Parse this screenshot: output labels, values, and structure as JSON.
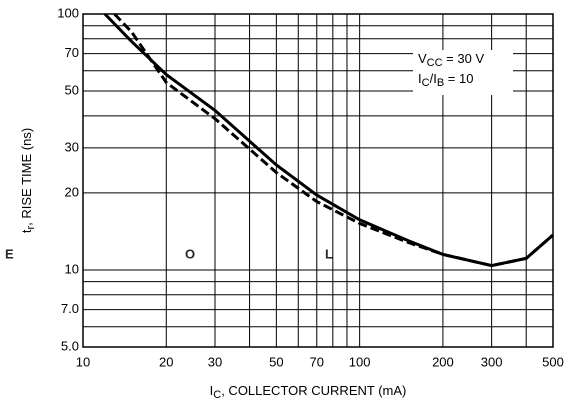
{
  "chart_data": {
    "type": "line",
    "watermark": [
      "E",
      "O",
      "L"
    ],
    "x_label": [
      "I",
      "C",
      ", COLLECTOR CURRENT (mA)"
    ],
    "y_label": [
      "t",
      "r",
      ", RISE TIME (ns)"
    ],
    "annotations": [
      [
        "V",
        "CC",
        " = 30 V"
      ],
      [
        "I",
        "C",
        "/I",
        "B",
        " = 10"
      ]
    ],
    "log_x": true,
    "log_y": true,
    "xlim": [
      10,
      500
    ],
    "ylim": [
      5,
      100
    ],
    "xticks": [
      10,
      20,
      30,
      50,
      70,
      100,
      200,
      300,
      500
    ],
    "yticks": [
      {
        "value": 5,
        "label": "5.0"
      },
      {
        "value": 7,
        "label": "7.0"
      },
      10,
      20,
      30,
      50,
      70,
      100
    ],
    "xgrid": [
      10,
      20,
      30,
      40,
      50,
      60,
      70,
      80,
      90,
      100,
      200,
      300,
      400,
      500
    ],
    "ygrid": [
      5,
      6,
      7,
      8,
      9,
      10,
      20,
      30,
      40,
      50,
      60,
      70,
      80,
      90,
      100
    ],
    "series": [
      {
        "style": "solid",
        "color": "#000000",
        "x": [
          12,
          15,
          20,
          30,
          50,
          70,
          100,
          150,
          200,
          300,
          400,
          500
        ],
        "values": [
          100,
          78,
          58,
          42,
          25.7,
          19.6,
          15.7,
          13,
          11.5,
          10.4,
          11.1,
          13.7
        ]
      },
      {
        "style": "dashed",
        "color": "#000000",
        "x": [
          13,
          15,
          20,
          30,
          50,
          70,
          100,
          150,
          200,
          300,
          400,
          500
        ],
        "values": [
          100,
          85,
          54,
          39,
          24,
          18.5,
          15.2,
          12.8,
          11.5,
          10.4,
          11.1,
          13.7
        ]
      }
    ]
  }
}
